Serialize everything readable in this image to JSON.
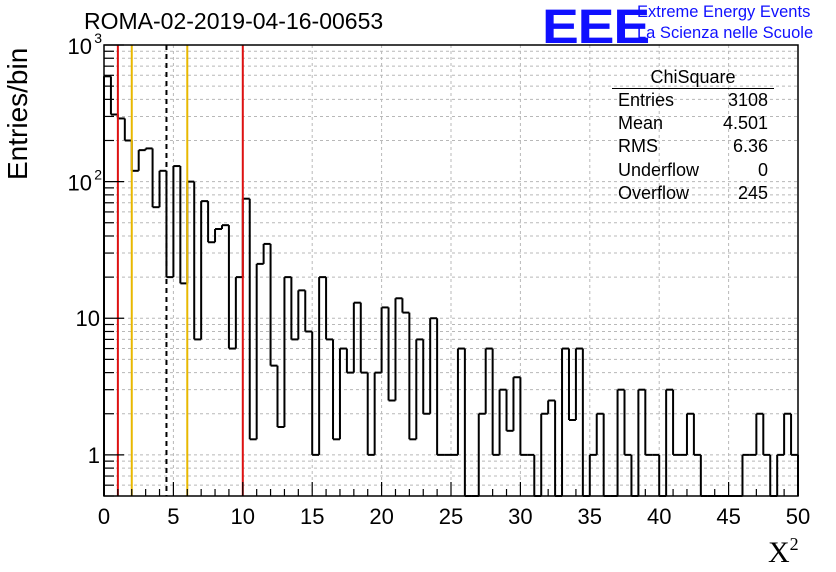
{
  "header": {
    "title": "ROMA-02-2019-04-16-00653",
    "logo_text": "EEE",
    "logo_line1": "Extreme Energy Events",
    "logo_line2": "La Scienza nelle Scuole",
    "brand_color": "#1010ff"
  },
  "stats_box": {
    "title": "ChiSquare",
    "rows": [
      {
        "label": "Entries",
        "value": "3108"
      },
      {
        "label": "Mean",
        "value": "4.501"
      },
      {
        "label": "RMS",
        "value": "6.36"
      },
      {
        "label": "Underflow",
        "value": "0"
      },
      {
        "label": "Overflow",
        "value": "245"
      }
    ]
  },
  "chart_data": {
    "type": "bar",
    "ylabel": "Entries/bin",
    "xlabel": "X",
    "xlabel_superscript": "2",
    "xlim": [
      0,
      50
    ],
    "ylim": [
      0.5,
      1000
    ],
    "y_scale": "log",
    "bin_width": 0.5,
    "grid": true,
    "x_ticks": [
      "0",
      "5",
      "10",
      "15",
      "20",
      "25",
      "30",
      "35",
      "40",
      "45",
      "50"
    ],
    "y_ticks": [
      {
        "value": 1,
        "label": "1"
      },
      {
        "value": 10,
        "label": "10"
      },
      {
        "value": 100,
        "label": "10",
        "exp": "2"
      },
      {
        "value": 1000,
        "label": "10",
        "exp": "3"
      }
    ],
    "values": [
      590,
      310,
      290,
      200,
      120,
      170,
      175,
      65,
      120,
      20,
      130,
      18,
      100,
      7,
      72,
      36,
      45,
      48,
      6,
      20,
      75,
      1.3,
      25,
      35,
      4.5,
      1.6,
      20,
      7,
      16,
      8,
      1,
      20,
      7,
      1.3,
      6,
      4,
      13,
      4,
      1,
      4,
      12,
      2.5,
      14,
      11,
      1.3,
      7,
      2,
      10,
      1,
      1,
      1,
      6,
      0.1,
      0.1,
      2,
      6,
      1,
      3,
      1.5,
      3.7,
      1,
      1,
      0.1,
      2,
      2.5,
      0.1,
      6,
      1.8,
      6,
      0.1,
      1,
      2,
      0.1,
      0.1,
      3,
      1,
      0.1,
      3,
      1,
      1,
      0.1,
      3,
      1,
      1,
      2,
      1,
      0.1,
      0.1,
      0.1,
      0.1,
      0.1,
      0.1,
      1,
      1,
      2,
      1,
      0.1,
      1,
      2,
      1
    ],
    "reference_lines": [
      {
        "x": 1,
        "color": "#dd1111",
        "style": "solid"
      },
      {
        "x": 2,
        "color": "#e8b800",
        "style": "solid"
      },
      {
        "x": 4.5,
        "color": "#000000",
        "style": "dashed"
      },
      {
        "x": 6,
        "color": "#e8b800",
        "style": "solid"
      },
      {
        "x": 10,
        "color": "#dd1111",
        "style": "solid"
      }
    ]
  }
}
